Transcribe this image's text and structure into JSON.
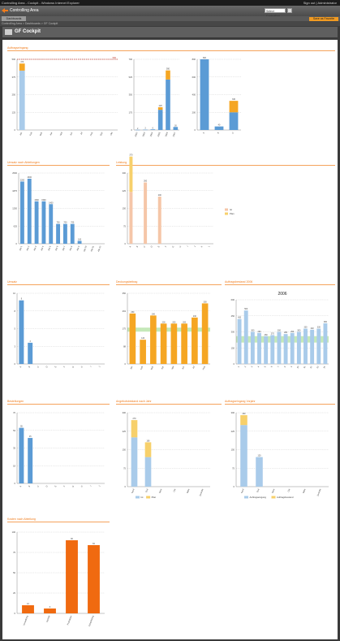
{
  "window": {
    "title": "Controlling Area - Cockpit - Windows Internet Explorer",
    "right_text": "Sign out | Administrator"
  },
  "app": {
    "name": "Controlling Area",
    "selector_value": "Select Controlling",
    "tab_label": "Dashboards",
    "action_button": "Save as Favorite"
  },
  "breadcrumb": "Controlling Area > Dashboards > GF Cockpit",
  "page_title": "GF Cockpit",
  "colors": {
    "blue": "#5b9bd5",
    "lightblue": "#a9cbea",
    "orange": "#f5a623",
    "deeporange": "#f06a10",
    "yellow": "#f7d06b",
    "peach": "#f5c6a8",
    "green": "#b7e4a7",
    "red": "#c0392b",
    "accent": "#f07c1c"
  },
  "sections": [
    {
      "id": "s1",
      "title": "Auftragseingang"
    },
    {
      "id": "s2",
      "title": "Umsatz nach Abteilungen"
    },
    {
      "id": "s3",
      "title": "Leistung"
    },
    {
      "id": "s4",
      "title": "Umsatz"
    },
    {
      "id": "s5",
      "title": "Deckungsbeitrag"
    },
    {
      "id": "s6",
      "title": "Auftragsbestand 2006"
    },
    {
      "id": "s7",
      "title": "Bestellungen"
    },
    {
      "id": "s8",
      "title": "Angebotsbestand nach Jahr"
    },
    {
      "id": "s9",
      "title": "Auftragseingang Vorjahr"
    },
    {
      "id": "s10",
      "title": "Kosten nach Abteilung"
    }
  ],
  "chart_data": [
    {
      "id": "c1",
      "type": "bar",
      "categories": [
        "Jan",
        "Feb",
        "Mär",
        "Apr",
        "Mai",
        "Jun",
        "Jul",
        "Aug",
        "Sep",
        "Okt"
      ],
      "series": [
        {
          "values": [
            420,
            0,
            0,
            0,
            0,
            0,
            0,
            0,
            0,
            0
          ],
          "color": "lightblue"
        },
        {
          "values": [
            50,
            0,
            0,
            0,
            0,
            0,
            0,
            0,
            0,
            0
          ],
          "color": "orange"
        }
      ],
      "ylim": [
        0,
        500
      ],
      "reference_line": 500,
      "reference_label": "500"
    },
    {
      "id": "c2",
      "type": "bar",
      "categories": [
        "2002",
        "2003",
        "2004",
        "2005",
        "2006",
        "2007"
      ],
      "series": [
        {
          "values": [
            2,
            3,
            6,
            200,
            500,
            30
          ],
          "color": "blue"
        },
        {
          "values": [
            0,
            0,
            0,
            25,
            90,
            0
          ],
          "color": "orange"
        }
      ],
      "ylim": [
        0,
        700
      ]
    },
    {
      "id": "c3",
      "type": "bar",
      "categories": [
        "A",
        "B",
        "C"
      ],
      "series": [
        {
          "values": [
            800,
            40,
            200
          ],
          "color": "blue"
        },
        {
          "values": [
            0,
            0,
            130
          ],
          "color": "orange"
        }
      ],
      "ylim": [
        0,
        800
      ]
    },
    {
      "id": "c4",
      "type": "bar",
      "categories": [
        "Abt 1",
        "Abt 2",
        "Abt 3",
        "Abt 4",
        "Abt 5",
        "Abt 6",
        "Abt 7",
        "Abt 8",
        "Abt 9",
        "Abt 10",
        "Abt 11",
        "Abt 12"
      ],
      "values": [
        2200,
        2300,
        1500,
        1500,
        1400,
        700,
        700,
        700,
        100,
        0,
        0,
        0
      ],
      "color": "blue",
      "ylim": [
        0,
        2500
      ]
    },
    {
      "id": "c5",
      "type": "bar",
      "categories": [
        "A",
        "B",
        "C",
        "D",
        "E",
        "F",
        "G",
        "H",
        "I",
        "J",
        "K",
        "L"
      ],
      "series": [
        {
          "values": [
            220,
            0,
            260,
            0,
            200,
            0,
            0,
            0,
            0,
            0,
            0,
            0
          ],
          "color": "peach"
        },
        {
          "values": [
            150,
            0,
            0,
            0,
            0,
            0,
            0,
            0,
            0,
            0,
            0,
            0
          ],
          "color": "yellow"
        }
      ],
      "ylim": [
        0,
        300
      ],
      "legend": [
        "Ist",
        "Plan"
      ],
      "legend_position": "right"
    },
    {
      "id": "c6",
      "type": "bar",
      "categories": [
        "A",
        "B",
        "C",
        "D",
        "E",
        "F",
        "G",
        "H",
        "I",
        "J"
      ],
      "values": [
        9,
        3,
        0,
        0,
        0,
        0,
        0,
        0,
        0,
        0
      ],
      "color": "blue",
      "ylim": [
        0,
        10
      ]
    },
    {
      "id": "c7",
      "type": "bar",
      "categories": [
        "Jan",
        "Feb",
        "Mär",
        "Apr",
        "Mai",
        "Jun",
        "Jul",
        "Aug"
      ],
      "values": [
        250,
        120,
        240,
        200,
        200,
        200,
        230,
        300
      ],
      "color": "orange",
      "ylim": [
        0,
        350
      ],
      "band": [
        160,
        180
      ]
    },
    {
      "id": "c8",
      "type": "bar",
      "title": "2006",
      "categories": [
        "1",
        "2",
        "3",
        "4",
        "5",
        "6",
        "7",
        "8",
        "9",
        "10",
        "11",
        "12",
        "13",
        "14"
      ],
      "values": [
        420,
        500,
        300,
        290,
        260,
        270,
        300,
        280,
        290,
        300,
        330,
        320,
        330,
        380
      ],
      "color": "lightblue",
      "ylim": [
        0,
        600
      ],
      "band": [
        200,
        260
      ]
    },
    {
      "id": "c9",
      "type": "bar",
      "categories": [
        "A",
        "B",
        "C",
        "D",
        "E",
        "F",
        "G",
        "H",
        "I",
        "J"
      ],
      "values": [
        55,
        45,
        0,
        0,
        0,
        0,
        0,
        0,
        0,
        0
      ],
      "color": "blue",
      "ylim": [
        0,
        70
      ]
    },
    {
      "id": "c10",
      "type": "bar",
      "categories": [
        "Nord",
        "Süd",
        "West",
        "Ost",
        "Mitte",
        "Zentrale"
      ],
      "series": [
        {
          "name": "Ist",
          "values": [
            200,
            120,
            0,
            0,
            0,
            0
          ],
          "color": "lightblue"
        },
        {
          "name": "Plan",
          "values": [
            70,
            60,
            0,
            0,
            0,
            0
          ],
          "color": "yellow"
        }
      ],
      "ylim": [
        0,
        300
      ]
    },
    {
      "id": "c11",
      "type": "bar",
      "categories": [
        "Nord",
        "Süd",
        "West",
        "Ost",
        "Mitte",
        "Zentrale"
      ],
      "series": [
        {
          "name": "Auftragseingang",
          "values": [
            250,
            120,
            0,
            0,
            0,
            0
          ],
          "color": "lightblue"
        },
        {
          "name": "Auftragsbestand",
          "values": [
            40,
            0,
            0,
            0,
            0,
            0
          ],
          "color": "yellow"
        }
      ],
      "ylim": [
        0,
        300
      ]
    },
    {
      "id": "c12",
      "type": "bar",
      "categories": [
        "Verwaltung",
        "Vertrieb",
        "Produktion",
        "Entwicklung"
      ],
      "values": [
        10,
        6,
        90,
        84
      ],
      "color": "deeporange",
      "ylim": [
        0,
        100
      ]
    }
  ]
}
